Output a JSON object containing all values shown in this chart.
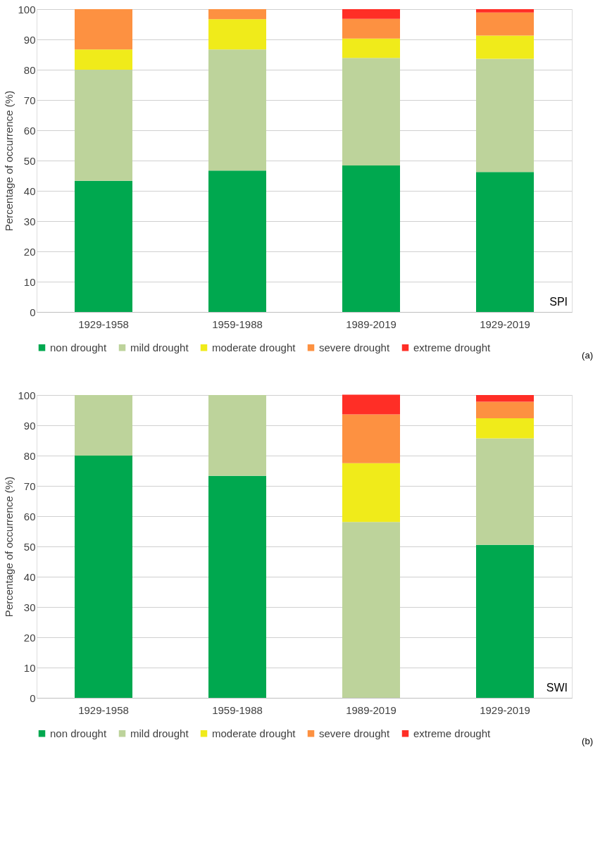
{
  "chart_data": [
    {
      "type": "bar",
      "stacked": true,
      "ylabel": "Percentage of occurrence (%)",
      "categories": [
        "1929-1958",
        "1959-1988",
        "1989-2019",
        "1929-2019"
      ],
      "series": [
        {
          "name": "non drought",
          "color": "#00a84f",
          "values": [
            43.3,
            46.7,
            48.4,
            46.2
          ]
        },
        {
          "name": "mild drought",
          "color": "#bdd39b",
          "values": [
            36.7,
            40,
            35.5,
            37.4
          ]
        },
        {
          "name": "moderate drought",
          "color": "#f0eb1a",
          "values": [
            6.7,
            10,
            6.4,
            7.7
          ]
        },
        {
          "name": "severe drought",
          "color": "#fd9141",
          "values": [
            13.3,
            3.3,
            6.5,
            7.6
          ]
        },
        {
          "name": "extreme drought",
          "color": "#ff2e26",
          "values": [
            0,
            0,
            3.2,
            1.1
          ]
        }
      ],
      "ylim": [
        0,
        100
      ],
      "yticks": [
        0,
        10,
        20,
        30,
        40,
        50,
        60,
        70,
        80,
        90,
        100
      ],
      "grid": "y",
      "legend": "bottom",
      "annotations": [
        "SPI",
        "(a)"
      ]
    },
    {
      "type": "bar",
      "stacked": true,
      "ylabel": "Percentage of occurrence (%)",
      "categories": [
        "1929-1958",
        "1959-1988",
        "1989-2019",
        "1929-2019"
      ],
      "series": [
        {
          "name": "non drought",
          "color": "#00a84f",
          "values": [
            80,
            73.3,
            0,
            50.5
          ]
        },
        {
          "name": "mild drought",
          "color": "#bdd39b",
          "values": [
            20,
            26.7,
            58.1,
            35.2
          ]
        },
        {
          "name": "moderate drought",
          "color": "#f0eb1a",
          "values": [
            0,
            0,
            19.4,
            6.6
          ]
        },
        {
          "name": "severe drought",
          "color": "#fd9141",
          "values": [
            0,
            0,
            16.1,
            5.5
          ]
        },
        {
          "name": "extreme drought",
          "color": "#ff2e26",
          "values": [
            0,
            0,
            6.5,
            2.2
          ]
        }
      ],
      "ylim": [
        0,
        100
      ],
      "yticks": [
        0,
        10,
        20,
        30,
        40,
        50,
        60,
        70,
        80,
        90,
        100
      ],
      "grid": "y",
      "legend": "bottom",
      "annotations": [
        "SWI",
        "(b)"
      ]
    }
  ]
}
